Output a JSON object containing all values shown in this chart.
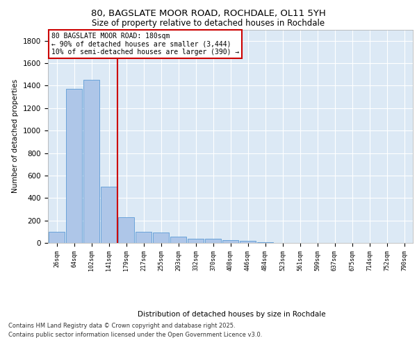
{
  "title_line1": "80, BAGSLATE MOOR ROAD, ROCHDALE, OL11 5YH",
  "title_line2": "Size of property relative to detached houses in Rochdale",
  "xlabel": "Distribution of detached houses by size in Rochdale",
  "ylabel": "Number of detached properties",
  "categories": [
    "26sqm",
    "64sqm",
    "102sqm",
    "141sqm",
    "179sqm",
    "217sqm",
    "255sqm",
    "293sqm",
    "332sqm",
    "370sqm",
    "408sqm",
    "446sqm",
    "484sqm",
    "523sqm",
    "561sqm",
    "599sqm",
    "637sqm",
    "675sqm",
    "714sqm",
    "752sqm",
    "790sqm"
  ],
  "values": [
    100,
    1370,
    1450,
    500,
    230,
    100,
    90,
    55,
    40,
    35,
    25,
    20,
    5,
    0,
    0,
    0,
    0,
    0,
    0,
    0,
    0
  ],
  "bar_color": "#aec6e8",
  "bar_edge_color": "#5b9bd5",
  "vline_x_index": 4,
  "vline_color": "#cc0000",
  "annotation_box_text": "80 BAGSLATE MOOR ROAD: 180sqm\n← 90% of detached houses are smaller (3,444)\n10% of semi-detached houses are larger (390) →",
  "annotation_box_color": "#cc0000",
  "annotation_box_fill": "#ffffff",
  "ylim": [
    0,
    1900
  ],
  "yticks": [
    0,
    200,
    400,
    600,
    800,
    1000,
    1200,
    1400,
    1600,
    1800
  ],
  "background_color": "#dce9f5",
  "grid_color": "#ffffff",
  "footer_line1": "Contains HM Land Registry data © Crown copyright and database right 2025.",
  "footer_line2": "Contains public sector information licensed under the Open Government Licence v3.0."
}
